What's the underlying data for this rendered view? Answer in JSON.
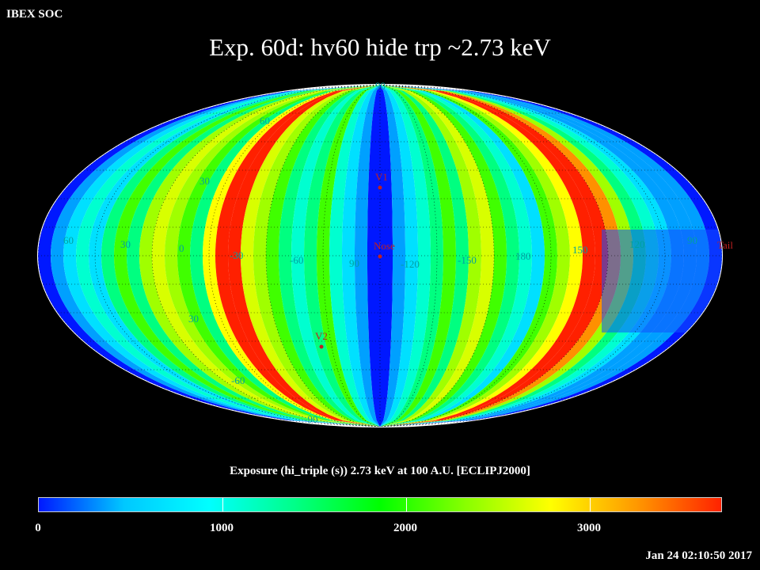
{
  "header": {
    "org": "IBEX SOC",
    "title": "Exp.   60d: hv60 hide trp ~2.73 keV"
  },
  "map": {
    "projection": "Aitoff/Hammer all-sky ellipse",
    "frame": "ECLIPJ2000",
    "lat_labels": [
      "90",
      "60",
      "30",
      "30",
      "-60",
      "-90"
    ],
    "lon_labels": [
      "60",
      "30",
      "0",
      "-30",
      "-60",
      "90",
      "-120",
      "-150",
      "180",
      "150",
      "120",
      "90"
    ],
    "markers": [
      {
        "label": "V1"
      },
      {
        "label": "Nose"
      },
      {
        "label": "V2"
      },
      {
        "label": "Tail"
      }
    ]
  },
  "colorbar": {
    "title": "Exposure (hi_triple (s))  2.73 keV at 100 A.U. [ECLIPJ2000]",
    "ticks": [
      "0",
      "1000",
      "2000",
      "3000"
    ],
    "range": [
      0,
      3800
    ],
    "colors": [
      "#0018ff",
      "#00c8ff",
      "#00ffff",
      "#00ff88",
      "#00ff00",
      "#88ff00",
      "#ffff00",
      "#ff9900",
      "#ff2200"
    ]
  },
  "timestamp": "Jan 24 02:10:50 2017"
}
